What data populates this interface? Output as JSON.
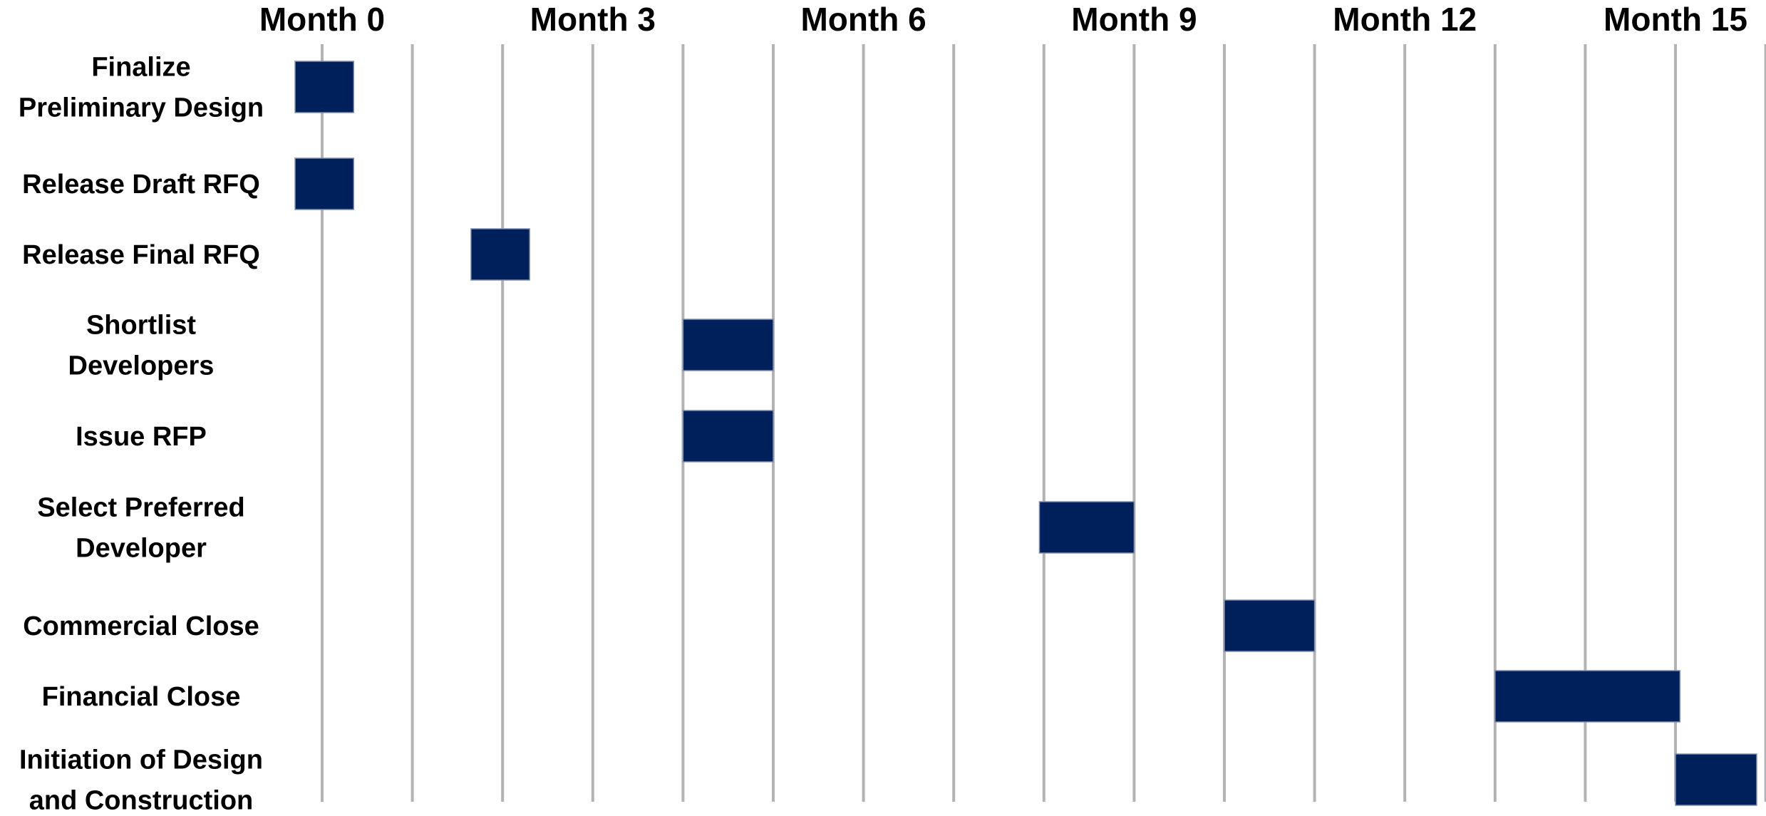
{
  "chart_data": {
    "type": "gantt",
    "title": "",
    "xlabel": "",
    "ylabel": "",
    "x_unit": "month",
    "xlim": [
      0,
      16
    ],
    "grid": true,
    "grid_interval_months": 1,
    "x_ticks": [
      {
        "value": 0,
        "label": "Month 0"
      },
      {
        "value": 3,
        "label": "Month 3"
      },
      {
        "value": 6,
        "label": "Month 6"
      },
      {
        "value": 9,
        "label": "Month 9"
      },
      {
        "value": 12,
        "label": "Month 12"
      },
      {
        "value": 15,
        "label": "Month 15"
      }
    ],
    "bar_color": "#00205b",
    "grid_color": "#b3b3b3",
    "tasks": [
      {
        "label": [
          "Finalize",
          "Preliminary Design"
        ],
        "start": -0.3,
        "end": 0.35
      },
      {
        "label": [
          "Release Draft RFQ"
        ],
        "start": -0.3,
        "end": 0.35
      },
      {
        "label": [
          "Release Final RFQ"
        ],
        "start": 1.65,
        "end": 2.3
      },
      {
        "label": [
          "Shortlist",
          "Developers"
        ],
        "start": 4.0,
        "end": 5.0
      },
      {
        "label": [
          "Issue RFP"
        ],
        "start": 4.0,
        "end": 5.0
      },
      {
        "label": [
          "Select Preferred",
          "Developer"
        ],
        "start": 7.95,
        "end": 9.0
      },
      {
        "label": [
          "Commercial Close"
        ],
        "start": 10.0,
        "end": 11.0
      },
      {
        "label": [
          "Financial Close"
        ],
        "start": 13.0,
        "end": 15.05
      },
      {
        "label": [
          "Initiation of Design",
          "and Construction"
        ],
        "start": 15.0,
        "end": 15.9
      }
    ]
  }
}
